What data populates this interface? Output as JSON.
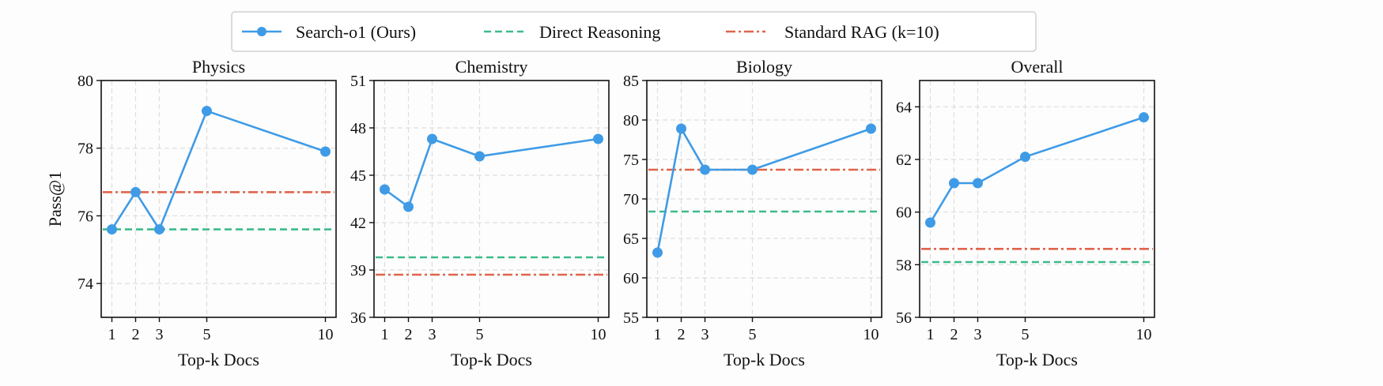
{
  "chart_data": [
    {
      "type": "line",
      "title": "Physics",
      "xlabel": "Top-k Docs",
      "ylabel": "Pass@1",
      "x": [
        1,
        2,
        3,
        5,
        10
      ],
      "ylim": [
        73,
        80
      ],
      "yticks": [
        74,
        76,
        78,
        80
      ],
      "grid": true,
      "series": [
        {
          "name": "Search-o1 (Ours)",
          "values": [
            75.6,
            76.7,
            75.6,
            79.1,
            77.9
          ]
        }
      ],
      "baselines": {
        "direct_reasoning": 75.6,
        "standard_rag": 76.7
      }
    },
    {
      "type": "line",
      "title": "Chemistry",
      "xlabel": "Top-k Docs",
      "ylabel": "",
      "x": [
        1,
        2,
        3,
        5,
        10
      ],
      "ylim": [
        36,
        51
      ],
      "yticks": [
        36,
        39,
        42,
        45,
        48,
        51
      ],
      "grid": true,
      "series": [
        {
          "name": "Search-o1 (Ours)",
          "values": [
            44.1,
            43.0,
            47.3,
            46.2,
            47.3
          ]
        }
      ],
      "baselines": {
        "direct_reasoning": 39.8,
        "standard_rag": 38.7
      }
    },
    {
      "type": "line",
      "title": "Biology",
      "xlabel": "Top-k Docs",
      "ylabel": "",
      "x": [
        1,
        2,
        3,
        5,
        10
      ],
      "ylim": [
        55,
        85
      ],
      "yticks": [
        55,
        60,
        65,
        70,
        75,
        80,
        85
      ],
      "grid": true,
      "series": [
        {
          "name": "Search-o1 (Ours)",
          "values": [
            63.2,
            78.9,
            73.7,
            73.7,
            78.9
          ]
        }
      ],
      "baselines": {
        "direct_reasoning": 68.4,
        "standard_rag": 73.7
      }
    },
    {
      "type": "line",
      "title": "Overall",
      "xlabel": "Top-k Docs",
      "ylabel": "",
      "x": [
        1,
        2,
        3,
        5,
        10
      ],
      "ylim": [
        56,
        65
      ],
      "yticks": [
        56,
        58,
        60,
        62,
        64
      ],
      "grid": true,
      "series": [
        {
          "name": "Search-o1 (Ours)",
          "values": [
            59.6,
            61.1,
            61.1,
            62.1,
            63.6
          ]
        }
      ],
      "baselines": {
        "direct_reasoning": 58.1,
        "standard_rag": 58.6
      }
    }
  ],
  "legend": {
    "placement": "top-center",
    "items": [
      {
        "label": "Search-o1 (Ours)",
        "color": "#3f9be6",
        "style": "solid-marker"
      },
      {
        "label": "Direct Reasoning",
        "color": "#3dbb8a",
        "style": "dashed"
      },
      {
        "label": "Standard RAG (k=10)",
        "color": "#e0644a",
        "style": "dash-dot"
      }
    ]
  },
  "colors": {
    "search_o1": "#3f9be6",
    "direct": "#3dbb8a",
    "rag": "#e0644a",
    "grid": "#dddddd"
  }
}
